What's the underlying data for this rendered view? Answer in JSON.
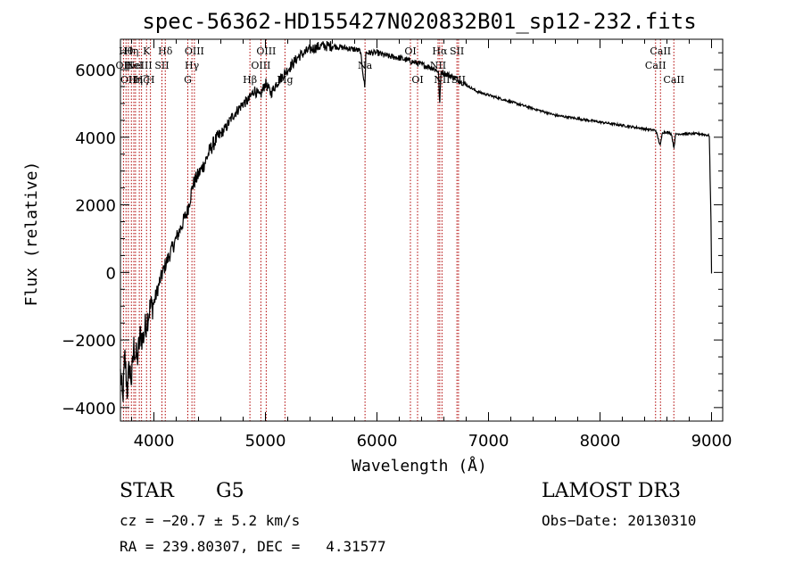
{
  "chart_data": {
    "type": "line",
    "title": "spec-56362-HD155427N020832B01_sp12-232.fits",
    "xlabel": "Wavelength (Å)",
    "ylabel": "Flux (relative)",
    "xlim": [
      3700,
      9100
    ],
    "ylim": [
      -4400,
      6900
    ],
    "xticks": [
      4000,
      5000,
      6000,
      7000,
      8000,
      9000
    ],
    "yticks": [
      -4000,
      -2000,
      0,
      2000,
      4000,
      6000
    ],
    "grid": false,
    "series": [
      {
        "name": "flux",
        "x": [
          3700,
          3720,
          3740,
          3760,
          3780,
          3800,
          3820,
          3850,
          3880,
          3900,
          3930,
          3960,
          4000,
          4050,
          4100,
          4150,
          4200,
          4250,
          4300,
          4350,
          4400,
          4450,
          4500,
          4550,
          4600,
          4650,
          4700,
          4750,
          4800,
          4850,
          4900,
          4950,
          5000,
          5050,
          5100,
          5150,
          5200,
          5250,
          5300,
          5400,
          5500,
          5600,
          5700,
          5800,
          5850,
          5890,
          5893,
          5900,
          5950,
          6000,
          6050,
          6100,
          6200,
          6300,
          6400,
          6500,
          6550,
          6563,
          6575,
          6600,
          6700,
          6800,
          6900,
          7000,
          7100,
          7200,
          7300,
          7400,
          7500,
          7600,
          7700,
          7800,
          7900,
          8000,
          8100,
          8200,
          8300,
          8400,
          8500,
          8540,
          8560,
          8600,
          8640,
          8662,
          8680,
          8700,
          8800,
          8900,
          8980,
          8995,
          9000
        ],
        "y": [
          -3000,
          -3800,
          -2500,
          -3500,
          -2800,
          -3200,
          -2200,
          -2600,
          -1800,
          -2000,
          -1500,
          -1100,
          -900,
          -300,
          200,
          600,
          1000,
          1400,
          1800,
          2600,
          2900,
          3200,
          3600,
          3900,
          4100,
          4300,
          4600,
          4800,
          5000,
          5100,
          5400,
          5200,
          5600,
          5300,
          5600,
          5800,
          6000,
          6200,
          6400,
          6600,
          6700,
          6700,
          6650,
          6600,
          6550,
          5500,
          5600,
          6500,
          6500,
          6500,
          6450,
          6400,
          6350,
          6250,
          6150,
          6050,
          5950,
          5000,
          5950,
          5900,
          5750,
          5550,
          5350,
          5250,
          5150,
          5050,
          4950,
          4850,
          4750,
          4650,
          4600,
          4550,
          4500,
          4450,
          4400,
          4350,
          4300,
          4250,
          4200,
          3750,
          4150,
          4150,
          4100,
          3700,
          4100,
          4100,
          4100,
          4100,
          4050,
          1500,
          -30
        ]
      }
    ],
    "lines": [
      {
        "x": 3727,
        "labels": [
          "OII"
        ],
        "row": 1
      },
      {
        "x": 3750,
        "labels": [
          "Hθ"
        ],
        "row": 0
      },
      {
        "x": 3771,
        "labels": [
          "OII"
        ],
        "row": 2
      },
      {
        "x": 3798,
        "labels": [
          "Hη"
        ],
        "row": 0
      },
      {
        "x": 3820,
        "labels": [
          "HeI"
        ],
        "row": 1
      },
      {
        "x": 3835,
        "labels": [
          "Hη"
        ],
        "row": 2
      },
      {
        "x": 3869,
        "labels": [
          "NeIII"
        ],
        "row": 1
      },
      {
        "x": 3889,
        "labels": [
          "Hζ"
        ],
        "row": 2
      },
      {
        "x": 3934,
        "labels": [
          "K"
        ],
        "row": 0
      },
      {
        "x": 3969,
        "labels": [
          "H"
        ],
        "row": 2
      },
      {
        "x": 4072,
        "labels": [
          "SII"
        ],
        "row": 1
      },
      {
        "x": 4102,
        "labels": [
          "Hδ"
        ],
        "row": 0
      },
      {
        "x": 4304,
        "labels": [
          "G"
        ],
        "row": 2
      },
      {
        "x": 4341,
        "labels": [
          "Hγ"
        ],
        "row": 1
      },
      {
        "x": 4363,
        "labels": [
          "OIII"
        ],
        "row": 0
      },
      {
        "x": 4861,
        "labels": [
          "Hβ"
        ],
        "row": 2
      },
      {
        "x": 4959,
        "labels": [
          "OIII"
        ],
        "row": 1
      },
      {
        "x": 5007,
        "labels": [
          "OIII"
        ],
        "row": 0
      },
      {
        "x": 5175,
        "labels": [
          "Mg"
        ],
        "row": 2
      },
      {
        "x": 5893,
        "labels": [
          "Na"
        ],
        "row": 1
      },
      {
        "x": 6300,
        "labels": [
          "OI"
        ],
        "row": 0
      },
      {
        "x": 6364,
        "labels": [
          "OI"
        ],
        "row": 2
      },
      {
        "x": 6548,
        "labels": [
          "NII"
        ],
        "row": 1
      },
      {
        "x": 6563,
        "labels": [
          "Hα"
        ],
        "row": 0
      },
      {
        "x": 6583,
        "labels": [
          "NII"
        ],
        "row": 2
      },
      {
        "x": 6717,
        "labels": [
          "SII"
        ],
        "row": 0
      },
      {
        "x": 6731,
        "labels": [
          "SII"
        ],
        "row": 2
      },
      {
        "x": 8498,
        "labels": [
          "CaII"
        ],
        "row": 1
      },
      {
        "x": 8542,
        "labels": [
          "CaII"
        ],
        "row": 0
      },
      {
        "x": 8662,
        "labels": [
          "CaII"
        ],
        "row": 2
      }
    ]
  },
  "info": {
    "class": "STAR",
    "subclass": "G5",
    "survey": "LAMOST DR3",
    "cz": "cz = −20.7 ± 5.2 km/s",
    "obs_date": "Obs−Date: 20130310",
    "radec": "RA = 239.80307, DEC =   4.31577"
  },
  "colors": {
    "line": "#000000",
    "marker": "#b00000",
    "background": "#ffffff"
  }
}
